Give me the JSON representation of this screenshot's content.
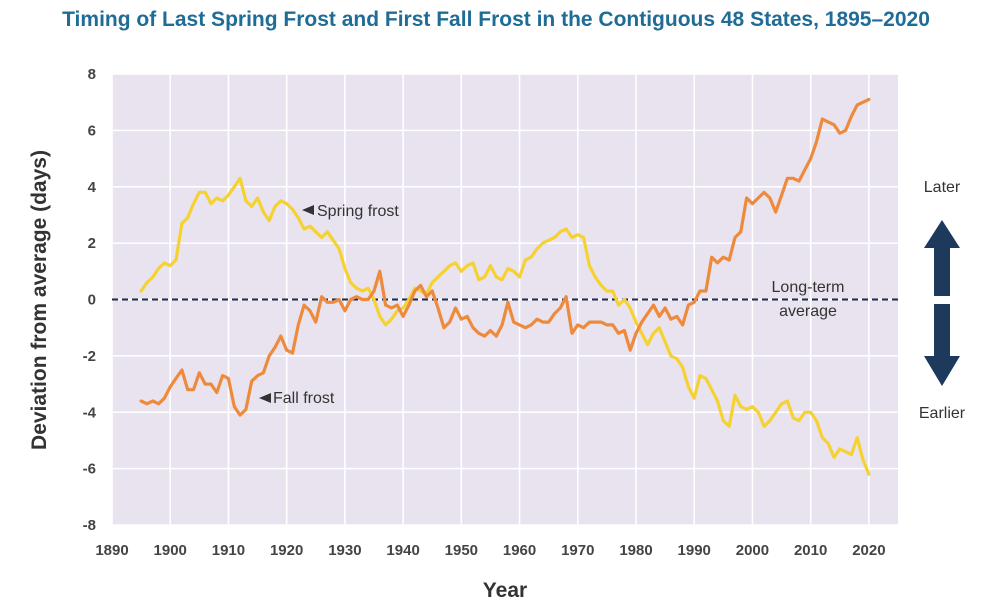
{
  "chart_data": {
    "type": "line",
    "title": "Timing of Last Spring Frost and First Fall Frost in the Contiguous 48 States, 1895–2020",
    "xlabel": "Year",
    "ylabel": "Deviation from average (days)",
    "xlim": [
      1890,
      2025
    ],
    "ylim": [
      -8,
      8
    ],
    "x_ticks": [
      1890,
      1900,
      1910,
      1920,
      1930,
      1940,
      1950,
      1960,
      1970,
      1980,
      1990,
      2000,
      2010,
      2020
    ],
    "y_ticks": [
      8,
      6,
      4,
      2,
      0,
      -2,
      -4,
      -6,
      -8
    ],
    "grid": true,
    "reference_line": {
      "value": 0,
      "label_line1": "Long-term",
      "label_line2": "average",
      "color": "#1a2a4a"
    },
    "side_labels": {
      "top": "Later",
      "bottom": "Earlier"
    },
    "arrow_color": "#1d3a5c",
    "background_color": "#e8e3ef",
    "series": [
      {
        "name": "Spring frost",
        "color": "#f5d232",
        "x": [
          1895,
          1896,
          1897,
          1898,
          1899,
          1900,
          1901,
          1902,
          1903,
          1904,
          1905,
          1906,
          1907,
          1908,
          1909,
          1910,
          1911,
          1912,
          1913,
          1914,
          1915,
          1916,
          1917,
          1918,
          1919,
          1920,
          1921,
          1922,
          1923,
          1924,
          1925,
          1926,
          1927,
          1928,
          1929,
          1930,
          1931,
          1932,
          1933,
          1934,
          1935,
          1936,
          1937,
          1938,
          1939,
          1940,
          1941,
          1942,
          1943,
          1944,
          1945,
          1946,
          1947,
          1948,
          1949,
          1950,
          1951,
          1952,
          1953,
          1954,
          1955,
          1956,
          1957,
          1958,
          1959,
          1960,
          1961,
          1962,
          1963,
          1964,
          1965,
          1966,
          1967,
          1968,
          1969,
          1970,
          1971,
          1972,
          1973,
          1974,
          1975,
          1976,
          1977,
          1978,
          1979,
          1980,
          1981,
          1982,
          1983,
          1984,
          1985,
          1986,
          1987,
          1988,
          1989,
          1990,
          1991,
          1992,
          1993,
          1994,
          1995,
          1996,
          1997,
          1998,
          1999,
          2000,
          2001,
          2002,
          2003,
          2004,
          2005,
          2006,
          2007,
          2008,
          2009,
          2010,
          2011,
          2012,
          2013,
          2014,
          2015,
          2016,
          2017,
          2018,
          2019,
          2020
        ],
        "values": [
          0.3,
          0.6,
          0.8,
          1.1,
          1.3,
          1.2,
          1.4,
          2.7,
          2.9,
          3.4,
          3.8,
          3.8,
          3.4,
          3.6,
          3.5,
          3.7,
          4.0,
          4.3,
          3.5,
          3.3,
          3.6,
          3.1,
          2.8,
          3.3,
          3.5,
          3.4,
          3.2,
          2.9,
          2.5,
          2.6,
          2.4,
          2.2,
          2.4,
          2.1,
          1.8,
          1.1,
          0.6,
          0.4,
          0.3,
          0.4,
          0.0,
          -0.6,
          -0.9,
          -0.7,
          -0.4,
          -0.3,
          0.0,
          0.4,
          0.3,
          0.2,
          0.6,
          0.8,
          1.0,
          1.2,
          1.3,
          1.0,
          1.2,
          1.3,
          0.7,
          0.8,
          1.2,
          0.8,
          0.7,
          1.1,
          1.0,
          0.8,
          1.4,
          1.5,
          1.8,
          2.0,
          2.1,
          2.2,
          2.4,
          2.5,
          2.2,
          2.3,
          2.2,
          1.2,
          0.8,
          0.5,
          0.3,
          0.3,
          -0.2,
          0.0,
          -0.3,
          -0.8,
          -1.2,
          -1.6,
          -1.2,
          -1.0,
          -1.5,
          -2.0,
          -2.1,
          -2.4,
          -3.1,
          -3.5,
          -2.7,
          -2.8,
          -3.2,
          -3.6,
          -4.3,
          -4.5,
          -3.4,
          -3.8,
          -3.9,
          -3.8,
          -4.0,
          -4.5,
          -4.3,
          -4.0,
          -3.7,
          -3.6,
          -4.2,
          -4.3,
          -4.0,
          -4.0,
          -4.3,
          -4.9,
          -5.1,
          -5.6,
          -5.3,
          -5.4,
          -5.5,
          -4.9,
          -5.7,
          -6.2
        ]
      },
      {
        "name": "Fall frost",
        "color": "#ee8a3c",
        "x": [
          1895,
          1896,
          1897,
          1898,
          1899,
          1900,
          1901,
          1902,
          1903,
          1904,
          1905,
          1906,
          1907,
          1908,
          1909,
          1910,
          1911,
          1912,
          1913,
          1914,
          1915,
          1916,
          1917,
          1918,
          1919,
          1920,
          1921,
          1922,
          1923,
          1924,
          1925,
          1926,
          1927,
          1928,
          1929,
          1930,
          1931,
          1932,
          1933,
          1934,
          1935,
          1936,
          1937,
          1938,
          1939,
          1940,
          1941,
          1942,
          1943,
          1944,
          1945,
          1946,
          1947,
          1948,
          1949,
          1950,
          1951,
          1952,
          1953,
          1954,
          1955,
          1956,
          1957,
          1958,
          1959,
          1960,
          1961,
          1962,
          1963,
          1964,
          1965,
          1966,
          1967,
          1968,
          1969,
          1970,
          1971,
          1972,
          1973,
          1974,
          1975,
          1976,
          1977,
          1978,
          1979,
          1980,
          1981,
          1982,
          1983,
          1984,
          1985,
          1986,
          1987,
          1988,
          1989,
          1990,
          1991,
          1992,
          1993,
          1994,
          1995,
          1996,
          1997,
          1998,
          1999,
          2000,
          2001,
          2002,
          2003,
          2004,
          2005,
          2006,
          2007,
          2008,
          2009,
          2010,
          2011,
          2012,
          2013,
          2014,
          2015,
          2016,
          2017,
          2018,
          2019,
          2020
        ],
        "values": [
          -3.6,
          -3.7,
          -3.6,
          -3.7,
          -3.5,
          -3.1,
          -2.8,
          -2.5,
          -3.2,
          -3.2,
          -2.6,
          -3.0,
          -3.0,
          -3.3,
          -2.7,
          -2.8,
          -3.8,
          -4.1,
          -3.9,
          -2.9,
          -2.7,
          -2.6,
          -2.0,
          -1.7,
          -1.3,
          -1.8,
          -1.9,
          -0.9,
          -0.2,
          -0.4,
          -0.8,
          0.1,
          -0.1,
          -0.1,
          0.0,
          -0.4,
          0.0,
          0.1,
          0.0,
          0.0,
          0.3,
          1.0,
          -0.2,
          -0.3,
          -0.2,
          -0.6,
          -0.2,
          0.3,
          0.5,
          0.1,
          0.3,
          -0.3,
          -1.0,
          -0.8,
          -0.3,
          -0.7,
          -0.6,
          -1.0,
          -1.2,
          -1.3,
          -1.1,
          -1.3,
          -0.9,
          -0.1,
          -0.8,
          -0.9,
          -1.0,
          -0.9,
          -0.7,
          -0.8,
          -0.8,
          -0.5,
          -0.3,
          0.1,
          -1.2,
          -0.9,
          -1.0,
          -0.8,
          -0.8,
          -0.8,
          -0.9,
          -0.9,
          -1.2,
          -1.1,
          -1.8,
          -1.2,
          -0.8,
          -0.5,
          -0.2,
          -0.6,
          -0.3,
          -0.7,
          -0.6,
          -0.9,
          -0.2,
          -0.1,
          0.3,
          0.3,
          1.5,
          1.3,
          1.5,
          1.4,
          2.2,
          2.4,
          3.6,
          3.4,
          3.6,
          3.8,
          3.6,
          3.1,
          3.7,
          4.3,
          4.3,
          4.2,
          4.6,
          5.0,
          5.6,
          6.4,
          6.3,
          6.2,
          5.9,
          6.0,
          6.5,
          6.9,
          7.0,
          7.1
        ]
      }
    ]
  }
}
